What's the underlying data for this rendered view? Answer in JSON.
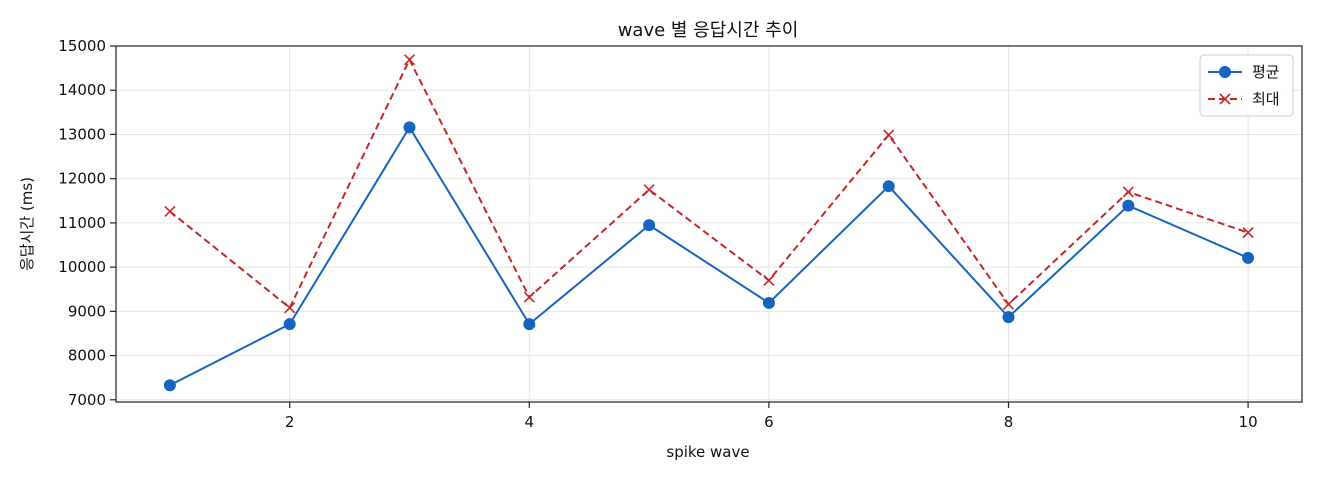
{
  "chart_data": {
    "type": "line",
    "title": "wave 별 응답시간 추이",
    "xlabel": "spike wave",
    "ylabel": "응답시간 (ms)",
    "x": [
      1,
      2,
      3,
      4,
      5,
      6,
      7,
      8,
      9,
      10
    ],
    "xticks": [
      2,
      4,
      6,
      8,
      10
    ],
    "yticks": [
      7000,
      8000,
      9000,
      10000,
      11000,
      12000,
      13000,
      14000,
      15000
    ],
    "xlim": [
      0.55,
      10.45
    ],
    "ylim": [
      6950,
      15000
    ],
    "grid": true,
    "legend_position": "top-right",
    "series": [
      {
        "name": "평균",
        "color": "#1565c0",
        "line_style": "solid",
        "marker": "circle",
        "values": [
          7330,
          8710,
          13160,
          8710,
          10950,
          9190,
          11830,
          8870,
          11390,
          10210
        ]
      },
      {
        "name": "최대",
        "color": "#c62828",
        "line_style": "dashed",
        "marker": "x",
        "values": [
          11260,
          9080,
          14690,
          9320,
          11750,
          9700,
          12990,
          9160,
          11700,
          10780
        ]
      }
    ]
  }
}
